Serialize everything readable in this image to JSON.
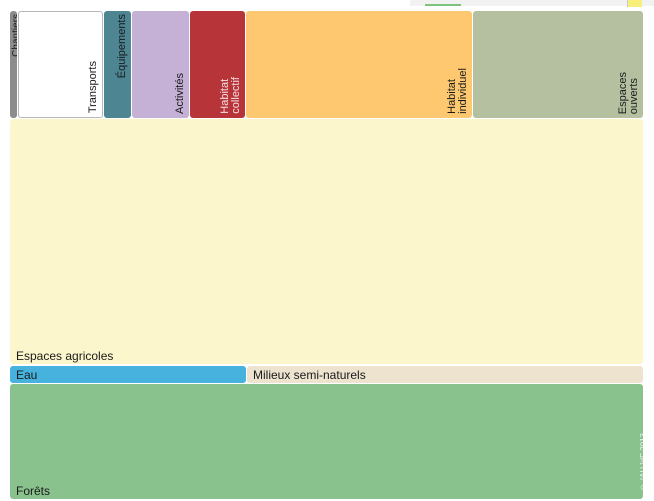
{
  "chart_data": {
    "type": "treemap",
    "title": "",
    "credit": "© IAU îdF 2013",
    "tiles": [
      {
        "name": "Chantiers",
        "color": "#8c8c8c",
        "label_style": "vertical-top-left"
      },
      {
        "name": "Transports",
        "color": "#ffffff",
        "label_style": "vertical"
      },
      {
        "name": "Équipements",
        "color": "#4d8593",
        "label_style": "vertical-top"
      },
      {
        "name": "Activités",
        "color": "#c5b1d6",
        "label_style": "vertical"
      },
      {
        "name": "Habitat\ncollectif",
        "color": "#b73439",
        "label_style": "vertical"
      },
      {
        "name": "Habitat\nindividuel",
        "color": "#fdc870",
        "label_style": "vertical"
      },
      {
        "name": "Espaces\nouverts",
        "color": "#b5c0a0",
        "label_style": "vertical"
      },
      {
        "name": "Espaces agricoles",
        "color": "#fcf6cc",
        "label_style": "horizontal"
      },
      {
        "name": "Eau",
        "color": "#47b2de",
        "label_style": "horizontal"
      },
      {
        "name": "Milieux semi-naturels",
        "color": "#ede3cf",
        "label_style": "horizontal"
      },
      {
        "name": "Forêts",
        "color": "#89c28c",
        "label_style": "horizontal"
      }
    ]
  }
}
